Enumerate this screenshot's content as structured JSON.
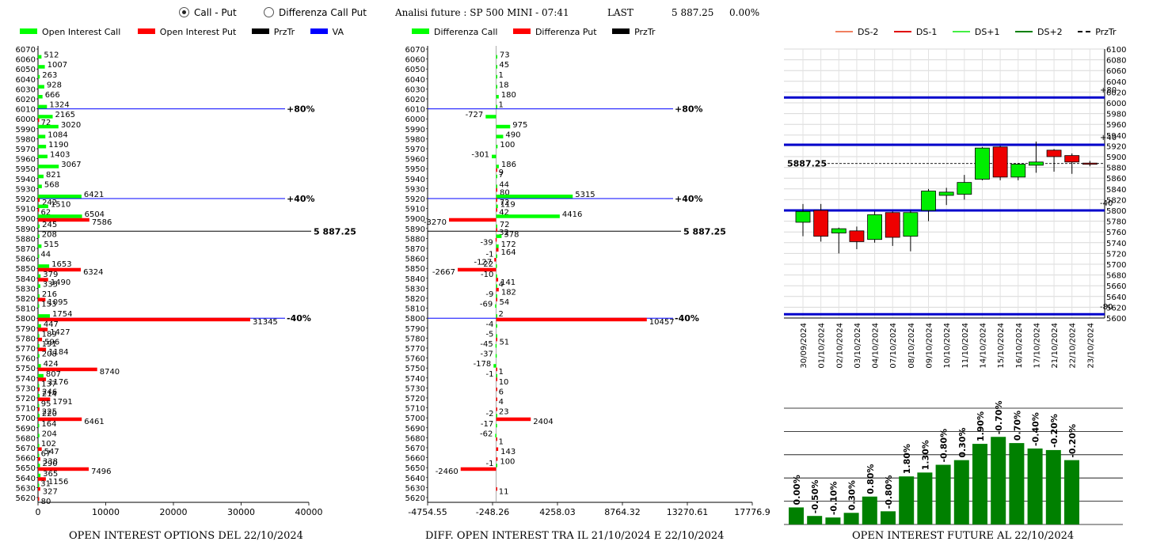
{
  "controls": {
    "radio_call_put": "Call - Put",
    "radio_diff": "Differenza Call Put",
    "selected": "Call - Put"
  },
  "header": {
    "title": "Analisi future : SP 500 MINI - 07:41",
    "last_label": "LAST",
    "last_value": "5 887.25",
    "change": "0.00%"
  },
  "colors": {
    "call": "#00ff00",
    "put": "#ff0000",
    "przTr": "#000000",
    "va": "#0000ff",
    "future_bar": "#008000"
  },
  "chart_data": [
    {
      "type": "bar",
      "orientation": "horizontal",
      "caption": "OPEN INTEREST OPTIONS DEL 22/10/2024",
      "legend": [
        {
          "label": "Open Interest Call",
          "color": "#00ff00"
        },
        {
          "label": "Open Interest Put",
          "color": "#ff0000"
        },
        {
          "label": "PrzTr",
          "color": "#000000"
        },
        {
          "label": "VA",
          "color": "#0000ff"
        }
      ],
      "strikes": [
        "6070",
        "6060",
        "6050",
        "6040",
        "6030",
        "6020",
        "6010",
        "6000",
        "5990",
        "5980",
        "5970",
        "5960",
        "5950",
        "5940",
        "5930",
        "5920",
        "5910",
        "5900",
        "5890",
        "5880",
        "5870",
        "5860",
        "5850",
        "5840",
        "5830",
        "5820",
        "5810",
        "5800",
        "5790",
        "5780",
        "5770",
        "5760",
        "5750",
        "5740",
        "5730",
        "5720",
        "5710",
        "5700",
        "5690",
        "5680",
        "5670",
        "5660",
        "5650",
        "5640",
        "5630",
        "5620"
      ],
      "call": [
        0,
        512,
        1007,
        263,
        928,
        666,
        1324,
        2165,
        3020,
        1084,
        1190,
        1403,
        3067,
        821,
        568,
        6421,
        1510,
        6504,
        245,
        208,
        515,
        44,
        1653,
        379,
        335,
        216,
        153,
        1754,
        447,
        189,
        191,
        208,
        424,
        807,
        137,
        214,
        95,
        220,
        164,
        204,
        102,
        67,
        290,
        365,
        31,
        0
      ],
      "put": [
        0,
        0,
        0,
        0,
        0,
        0,
        0,
        72,
        0,
        0,
        0,
        0,
        0,
        0,
        0,
        242,
        62,
        7586,
        0,
        0,
        0,
        0,
        6324,
        1490,
        0,
        1095,
        0,
        31345,
        1427,
        596,
        1184,
        0,
        8740,
        1176,
        246,
        1791,
        225,
        6461,
        0,
        0,
        547,
        338,
        7496,
        1156,
        327,
        80
      ],
      "x_ticks": [
        "0",
        "10000",
        "20000",
        "30000",
        "40000"
      ],
      "xlim": [
        0,
        40000
      ],
      "va_lines": [
        {
          "strike": "6010",
          "label": "+80%"
        },
        {
          "strike": "5920",
          "label": "+40%"
        },
        {
          "strike": "5800",
          "label": "-40%"
        }
      ],
      "przTr": {
        "value": "5 887.25"
      }
    },
    {
      "type": "bar",
      "orientation": "horizontal",
      "caption": "DIFF. OPEN INTEREST TRA IL 21/10/2024 E 22/10/2024",
      "legend": [
        {
          "label": "Differenza Call",
          "color": "#00ff00"
        },
        {
          "label": "Differenza Put",
          "color": "#ff0000"
        },
        {
          "label": "PrzTr",
          "color": "#000000"
        }
      ],
      "strikes": [
        "6070",
        "6060",
        "6050",
        "6040",
        "6030",
        "6020",
        "6010",
        "6000",
        "5990",
        "5980",
        "5970",
        "5960",
        "5950",
        "5940",
        "5930",
        "5920",
        "5910",
        "5900",
        "5890",
        "5880",
        "5870",
        "5860",
        "5850",
        "5840",
        "5830",
        "5820",
        "5810",
        "5800",
        "5790",
        "5780",
        "5770",
        "5760",
        "5750",
        "5740",
        "5730",
        "5720",
        "5710",
        "5700",
        "5690",
        "5680",
        "5670",
        "5660",
        "5650",
        "5640",
        "5630",
        "5620"
      ],
      "call": [
        0,
        73,
        45,
        1,
        18,
        180,
        1,
        -727,
        975,
        490,
        100,
        -301,
        186,
        7,
        44,
        5315,
        119,
        4416,
        72,
        378,
        172,
        -1,
        -22,
        -10,
        4,
        -9,
        -69,
        2,
        -4,
        -5,
        -45,
        -37,
        -178,
        -1,
        0,
        0,
        0,
        -2,
        -17,
        -62,
        0,
        0,
        -1,
        0,
        0,
        0
      ],
      "put": [
        0,
        0,
        0,
        0,
        0,
        0,
        0,
        0,
        0,
        0,
        0,
        0,
        9,
        0,
        80,
        72,
        42,
        -3270,
        32,
        -39,
        164,
        -127,
        -2667,
        141,
        182,
        54,
        0,
        10457,
        0,
        51,
        0,
        0,
        1,
        10,
        6,
        4,
        23,
        2404,
        0,
        1,
        143,
        100,
        -2460,
        0,
        11,
        0
      ],
      "x_ticks": [
        "-4754.55",
        "-248.26",
        "4258.03",
        "8764.32",
        "13270.61",
        "17776.9"
      ],
      "xlim": [
        -4754.55,
        17776.9
      ],
      "va_lines": [
        {
          "strike": "6010",
          "label": "+80%"
        },
        {
          "strike": "5920",
          "label": "+40%"
        },
        {
          "strike": "5800",
          "label": "-40%"
        }
      ],
      "przTr": {
        "value": "5 887.25"
      }
    },
    {
      "type": "candlestick",
      "legend": [
        {
          "label": "DS-2",
          "color": "#f08060"
        },
        {
          "label": "DS-1",
          "color": "#e00000"
        },
        {
          "label": "DS+1",
          "color": "#44ee44"
        },
        {
          "label": "DS+2",
          "color": "#008000"
        },
        {
          "label": "PrzTr",
          "color": "#000000"
        }
      ],
      "dates": [
        "30/09/2024",
        "01/10/2024",
        "02/10/2024",
        "03/10/2024",
        "04/10/2024",
        "07/10/2024",
        "08/10/2024",
        "09/10/2024",
        "10/10/2024",
        "11/10/2024",
        "14/10/2024",
        "15/10/2024",
        "16/10/2024",
        "17/10/2024",
        "21/10/2024",
        "22/10/2024",
        "23/10/2024"
      ],
      "candles": [
        {
          "o": 5778,
          "c": 5798,
          "h": 5812,
          "l": 5752
        },
        {
          "o": 5800,
          "c": 5752,
          "h": 5812,
          "l": 5742
        },
        {
          "o": 5758,
          "c": 5766,
          "h": 5768,
          "l": 5720
        },
        {
          "o": 5762,
          "c": 5742,
          "h": 5770,
          "l": 5728
        },
        {
          "o": 5746,
          "c": 5792,
          "h": 5798,
          "l": 5740
        },
        {
          "o": 5796,
          "c": 5750,
          "h": 5798,
          "l": 5734
        },
        {
          "o": 5752,
          "c": 5796,
          "h": 5800,
          "l": 5724
        },
        {
          "o": 5800,
          "c": 5836,
          "h": 5840,
          "l": 5780
        },
        {
          "o": 5828,
          "c": 5834,
          "h": 5842,
          "l": 5810
        },
        {
          "o": 5830,
          "c": 5852,
          "h": 5866,
          "l": 5820
        },
        {
          "o": 5858,
          "c": 5916,
          "h": 5918,
          "l": 5856
        },
        {
          "o": 5918,
          "c": 5862,
          "h": 5920,
          "l": 5856
        },
        {
          "o": 5862,
          "c": 5886,
          "h": 5888,
          "l": 5856
        },
        {
          "o": 5884,
          "c": 5890,
          "h": 5928,
          "l": 5870
        },
        {
          "o": 5912,
          "c": 5900,
          "h": 5914,
          "l": 5872
        },
        {
          "o": 5902,
          "c": 5890,
          "h": 5906,
          "l": 5868
        },
        {
          "o": 5888,
          "c": 5887,
          "h": 5892,
          "l": 5882
        }
      ],
      "y_ticks": [
        "6100",
        "6080",
        "6060",
        "6040",
        "6020",
        "6000",
        "5980",
        "5960",
        "5940",
        "5920",
        "5900",
        "5880",
        "5860",
        "5840",
        "5820",
        "5800",
        "5780",
        "5760",
        "5740",
        "5720",
        "5700",
        "5680",
        "5660",
        "5640",
        "5620",
        "5600"
      ],
      "ylim": [
        5600,
        6100
      ],
      "levels": [
        {
          "value": 6010,
          "label": "+80"
        },
        {
          "value": 5922,
          "label": "+40"
        },
        {
          "value": 5800,
          "label": "-40"
        },
        {
          "value": 5607,
          "label": "-80"
        }
      ],
      "przTr": {
        "value": 5887.25,
        "label": "5887.25"
      }
    },
    {
      "type": "bar",
      "caption": "OPEN INTEREST FUTURE AL 22/10/2024",
      "labels": [
        "0.00%",
        "-0.50%",
        "-0.10%",
        "0.30%",
        "0.80%",
        "-0.80%",
        "1.80%",
        "1.30%",
        "-0.80%",
        "0.30%",
        "1.90%",
        "-0.70%",
        "0.70%",
        "-0.40%",
        "-0.20%",
        "-0.20%"
      ],
      "values": [
        22,
        11,
        9,
        15,
        36,
        17,
        62,
        67,
        77,
        83,
        104,
        113,
        105,
        98,
        96,
        83
      ],
      "ylim": [
        0,
        150
      ]
    }
  ]
}
